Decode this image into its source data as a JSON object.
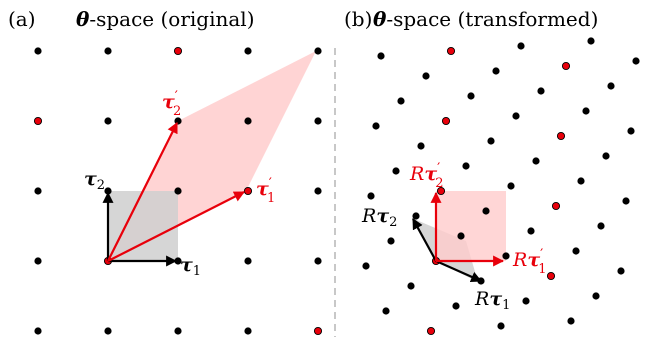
{
  "panel_a": {
    "tag": "(a)",
    "title_symbol": "θ",
    "title_rest": "-space (original)",
    "labels": {
      "tau1": "τ",
      "tau1_sub": "1",
      "tau2": "τ",
      "tau2_sub": "2",
      "tau1p": "τ",
      "tau1p_prime": "′",
      "tau1p_sub": "1",
      "tau2p": "τ",
      "tau2p_prime": "′",
      "tau2p_sub": "2"
    }
  },
  "panel_b": {
    "tag": "(b)",
    "title_symbol": "θ",
    "title_rest": "-space (transformed)",
    "labels": {
      "rtau1_R": "R",
      "rtau1": "τ",
      "rtau1_sub": "1",
      "rtau2_R": "R",
      "rtau2": "τ",
      "rtau2_sub": "2",
      "rtau1p_R": "R",
      "rtau1p": "τ",
      "rtau1p_prime": "′",
      "rtau1p_sub": "1",
      "rtau2p_R": "R",
      "rtau2p": "τ",
      "rtau2p_prime": "′",
      "rtau2p_sub": "2"
    }
  },
  "colors": {
    "red": "#e8000b",
    "red_fill": "#ffcccc",
    "gray_fill": "#cfcfcf",
    "black": "#000000",
    "divider": "#c8c8c8"
  }
}
